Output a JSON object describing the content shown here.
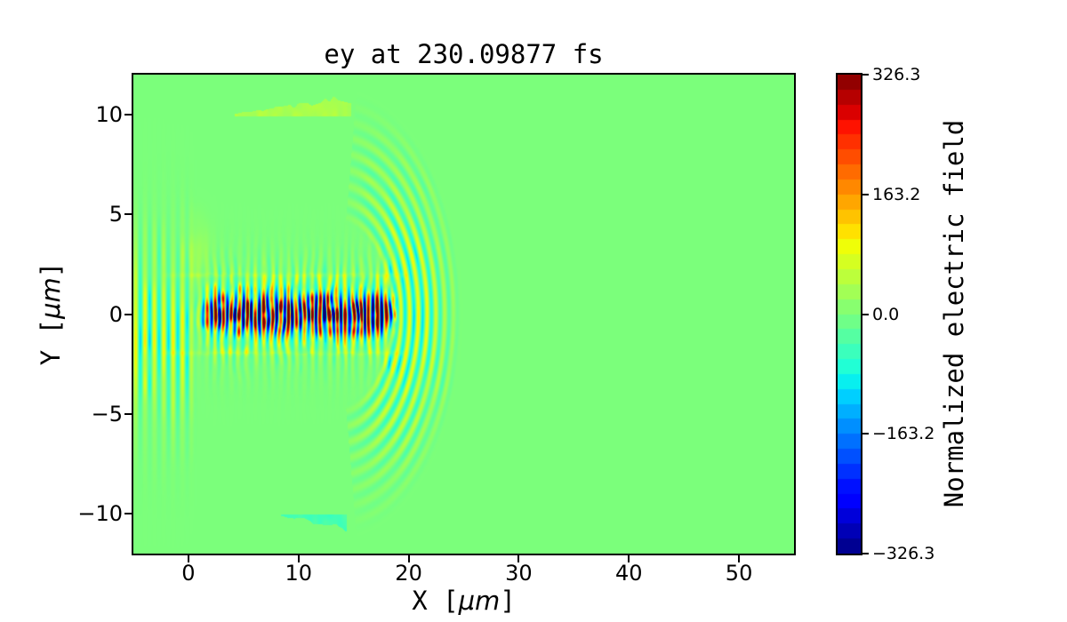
{
  "figure": {
    "title": "ey at 230.09877 fs",
    "background_color": "#ffffff"
  },
  "axes": {
    "xlabel_prefix": "X [",
    "xlabel_math": "μm",
    "xlabel_suffix": "]",
    "ylabel_prefix": "Y [",
    "ylabel_math": "μm",
    "ylabel_suffix": "]",
    "x_ticks": [
      {
        "value": 0,
        "label": "0"
      },
      {
        "value": 10,
        "label": "10"
      },
      {
        "value": 20,
        "label": "20"
      },
      {
        "value": 30,
        "label": "30"
      },
      {
        "value": 40,
        "label": "40"
      },
      {
        "value": 50,
        "label": "50"
      }
    ],
    "y_ticks": [
      {
        "value": 10,
        "label": "10"
      },
      {
        "value": 5,
        "label": "5"
      },
      {
        "value": 0,
        "label": "0"
      },
      {
        "value": -5,
        "label": "−5"
      },
      {
        "value": -10,
        "label": "−10"
      }
    ]
  },
  "colorbar": {
    "label": "Normalized electric field",
    "ticks": [
      {
        "value": 326.3,
        "label": "326.3"
      },
      {
        "value": 163.2,
        "label": "163.2"
      },
      {
        "value": 0.0,
        "label": "0.0"
      },
      {
        "value": -163.2,
        "label": "−163.2"
      },
      {
        "value": -326.3,
        "label": "−326.3"
      }
    ],
    "vmin": -326.3,
    "vmax": 326.3,
    "colormap": "jet",
    "n_bands": 32
  },
  "chart_data": {
    "type": "heatmap",
    "title": "ey at 230.09877 fs",
    "xlabel": "X [μm]",
    "ylabel": "Y [μm]",
    "xlim": [
      -5,
      55
    ],
    "ylim": [
      -12,
      12
    ],
    "clim": [
      -326.3,
      326.3
    ],
    "colormap": "jet",
    "colorbar_label": "Normalized electric field",
    "x_tick_values": [
      0,
      10,
      20,
      30,
      40,
      50
    ],
    "y_tick_values": [
      10,
      5,
      0,
      -5,
      -10
    ],
    "colorbar_tick_values": [
      326.3,
      163.2,
      0.0,
      -163.2,
      -326.3
    ],
    "background_field_value": 0.0,
    "description": "2D map of the normalized electric field component ey of a laser pulse at t = 230.09877 fs. A strong oscillating pulse (alternating red/blue fringes, |ey| up to ~326) propagates along y=0 between x~0 and x~19.5 um inside a plasma channel of half-width ~2 um; diverging vertical fringes fill the region x<0; concentric bow-like wavefronts expand ahead of the pulse up to x~24 um; faint perturbations appear near y=+10.3 um (positive) and y=-10.3 um (negative); the rest of the box is at field 0 (light green).",
    "synthesis": {
      "noise": {
        "fine_scale": 2.2,
        "coarse_scale": 0.9
      },
      "left_fan": {
        "fade_start": -0.2,
        "x_end": 0.9,
        "amp": 88,
        "y_center": -1.0,
        "y_sigma": 4.1,
        "wavelength": 0.85
      },
      "core": {
        "x_rise": [
          0.2,
          2.8
        ],
        "x_fall": [
          17.6,
          19.6
        ],
        "wavelength": 0.74,
        "amp_core": 330,
        "sigma_core": 0.85,
        "amp_side": 100,
        "sigma_side": 2.1,
        "speckle_base": 0.45,
        "speckle_gain": 1.1,
        "interior_noise_amp": 26,
        "interior_halfwidth": 2.0
      },
      "boundary_lines": {
        "y": 1.95,
        "sigma": 0.13,
        "amp": 30,
        "x_range": [
          -2.6,
          20.2
        ]
      },
      "arcs": {
        "cx": 13.6,
        "r_min": 4.4,
        "r_max": 11.4,
        "r_peak": 6.6,
        "r_sigma": 3.3,
        "wavelength": 0.8,
        "amp": 120,
        "ang_sigma": 1.0,
        "min_cos": 0.15,
        "phase": 0.9
      },
      "upper_patch": {
        "x_center": 0.8,
        "x_sigma": 1.1,
        "y_center": 3.2,
        "y_sigma": 1.4,
        "amp": 30
      },
      "top_smudge": {
        "x_range": [
          4.2,
          14.8
        ],
        "y_base": 9.92,
        "h0": 0.12,
        "h_slope": 0.075,
        "amp": 46
      },
      "bottom_smudge": {
        "x_range": [
          8.4,
          14.4
        ],
        "y_base": -10.02,
        "h0": 0.1,
        "h_slope": 0.1,
        "amp": -52
      }
    }
  },
  "layout_colors": {
    "axes_edge": "#000000",
    "zero_field_green": "#7bfd7b"
  }
}
